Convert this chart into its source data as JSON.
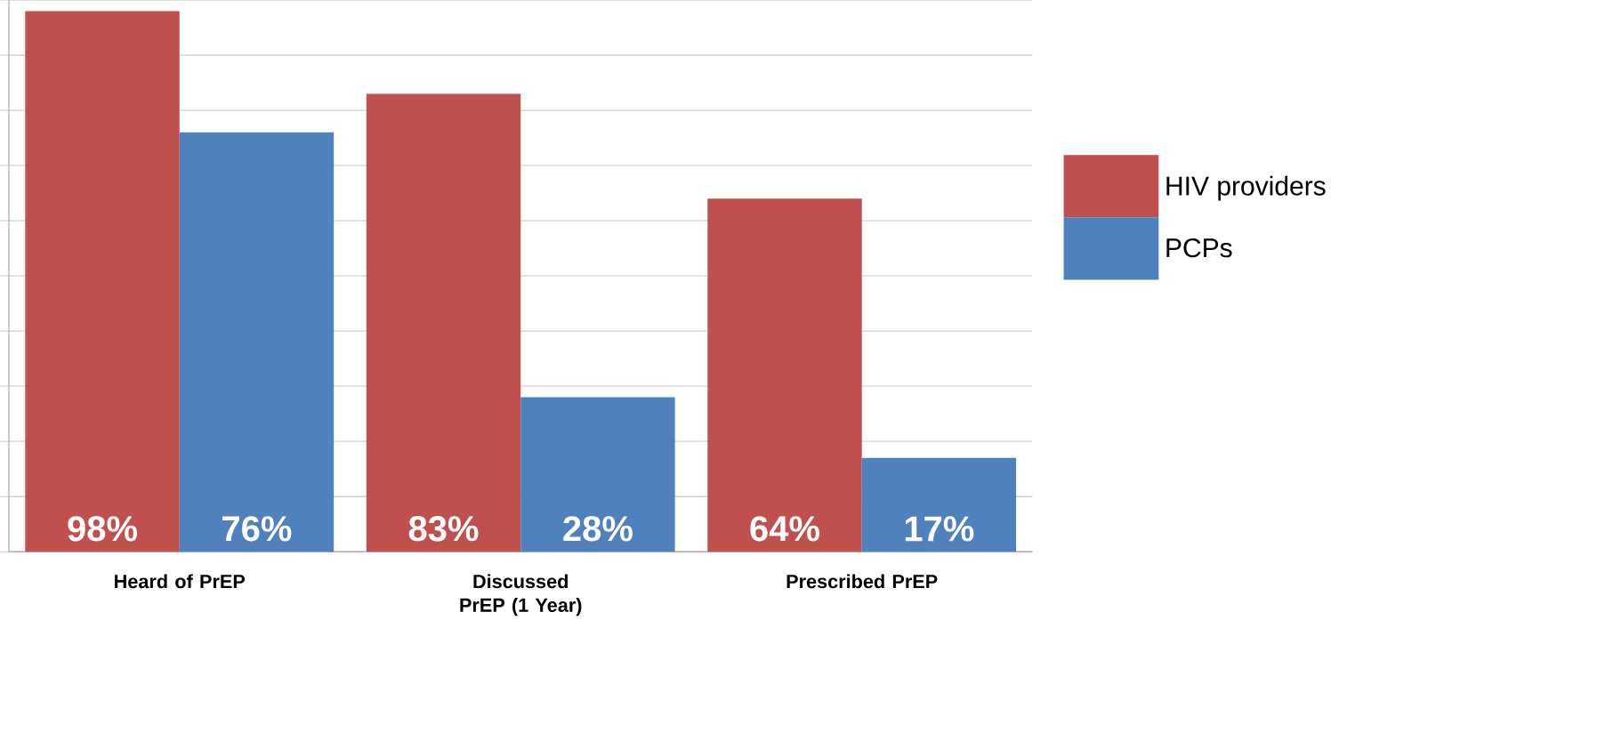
{
  "chart_data": {
    "type": "bar",
    "categories": [
      "Heard of PrEP",
      "Discussed PrEP (1 Year)",
      "Prescribed PrEP"
    ],
    "series": [
      {
        "name": "HIV providers",
        "color": "#c0504d",
        "values": [
          98,
          83,
          64
        ],
        "value_labels": [
          "98%",
          "83%",
          "64%"
        ]
      },
      {
        "name": "PCPs",
        "color": "#4f81bd",
        "values": [
          76,
          28,
          17
        ],
        "value_labels": [
          "76%",
          "28%",
          "17%"
        ]
      }
    ],
    "ylim": [
      0,
      100
    ],
    "yticks": [
      {
        "value": 0,
        "label": null
      },
      {
        "value": 10,
        "label": null
      },
      {
        "value": 20,
        "label": null
      },
      {
        "value": 30,
        "label": null
      },
      {
        "value": 40,
        "label": null
      },
      {
        "value": 50,
        "label": null
      },
      {
        "value": 60,
        "label": null
      },
      {
        "value": 70,
        "label": null
      },
      {
        "value": 80,
        "label": null
      },
      {
        "value": 90,
        "label": null
      },
      {
        "value": 100,
        "label": null
      }
    ],
    "grid": "y",
    "legend": "right",
    "tick_labels": "x"
  }
}
